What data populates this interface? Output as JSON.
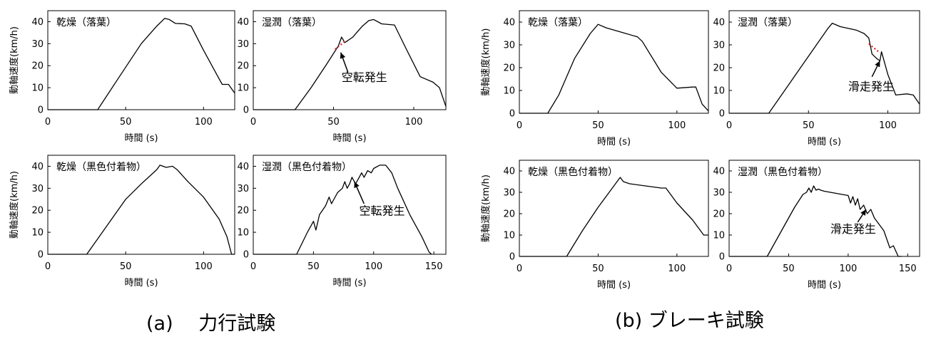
{
  "captions": {
    "a": "(a)　 力行試験",
    "b": "(b)  ブレーキ試験"
  },
  "chart_data": [
    {
      "type": "line",
      "group": "a",
      "title": "乾燥（落葉）",
      "xlabel": "時間 (s)",
      "ylabel": "動軸速度(km/h)",
      "xlim": [
        0,
        120
      ],
      "ylim": [
        0,
        45
      ],
      "xticks": [
        0,
        50,
        100
      ],
      "yticks": [
        0,
        10,
        20,
        30,
        40
      ],
      "series": [
        {
          "x": [
            0,
            32,
            45,
            60,
            70,
            75,
            78,
            82,
            88,
            92,
            100,
            110,
            112,
            116,
            120
          ],
          "y": [
            0,
            0,
            14,
            30,
            38,
            41.5,
            41,
            39.2,
            39,
            38,
            27,
            14,
            11.5,
            11.5,
            7.5
          ]
        }
      ],
      "annotations": []
    },
    {
      "type": "line",
      "group": "a",
      "title": "湿潤（落葉）",
      "xlabel": "時間 (s)",
      "ylabel": "",
      "xlim": [
        0,
        120
      ],
      "ylim": [
        0,
        45
      ],
      "xticks": [
        0,
        50,
        100
      ],
      "yticks": [
        0,
        10,
        20,
        30,
        40
      ],
      "series": [
        {
          "x": [
            0,
            26,
            36,
            46,
            53,
            55,
            57,
            62,
            68,
            72,
            75,
            80,
            88,
            95,
            104,
            112,
            116,
            120
          ],
          "y": [
            0,
            0,
            10,
            21,
            29,
            33,
            30.5,
            33,
            38,
            40.5,
            41,
            39,
            38.5,
            28,
            15,
            12.5,
            10,
            1.5
          ]
        }
      ],
      "annotations": [
        {
          "text": "空転発生",
          "x": 55,
          "y": 13
        }
      ]
    },
    {
      "type": "line",
      "group": "a",
      "title": "乾燥（黒色付着物）",
      "xlabel": "時間 (s)",
      "ylabel": "動軸速度(km/h)",
      "xlim": [
        0,
        120
      ],
      "ylim": [
        0,
        45
      ],
      "xticks": [
        0,
        50,
        100
      ],
      "yticks": [
        0,
        10,
        20,
        30,
        40
      ],
      "series": [
        {
          "x": [
            0,
            25,
            40,
            50,
            60,
            70,
            72,
            76,
            80,
            83,
            90,
            100,
            110,
            115,
            118,
            120
          ],
          "y": [
            0,
            0,
            15,
            25,
            32,
            38.5,
            40.5,
            39.5,
            40,
            38.5,
            33,
            26,
            16,
            8,
            0,
            0
          ]
        }
      ],
      "annotations": []
    },
    {
      "type": "line",
      "group": "a",
      "title": "湿潤（黒色付着物）",
      "xlabel": "時間 (s)",
      "ylabel": "",
      "xlim": [
        0,
        160
      ],
      "ylim": [
        0,
        45
      ],
      "xticks": [
        0,
        50,
        100,
        150
      ],
      "yticks": [
        0,
        10,
        20,
        30,
        40
      ],
      "series": [
        {
          "x": [
            0,
            36,
            45,
            50,
            52,
            55,
            60,
            63,
            65,
            70,
            74,
            76,
            78,
            80,
            82,
            85,
            88,
            90,
            92,
            95,
            98,
            100,
            105,
            110,
            115,
            120,
            130,
            140,
            146,
            148
          ],
          "y": [
            0,
            0,
            10,
            15,
            11,
            18,
            22,
            26,
            23,
            28,
            30,
            33,
            30,
            32,
            35,
            32,
            35,
            37,
            35,
            38,
            37,
            39,
            40.5,
            40.5,
            37,
            30,
            18,
            8,
            1,
            0
          ]
        }
      ],
      "annotations": [
        {
          "text": "空転発生",
          "x": 88,
          "y": 18
        }
      ]
    },
    {
      "type": "line",
      "group": "b",
      "title": "乾燥（落葉）",
      "xlabel": "時間 (s)",
      "ylabel": "動軸速度(km/h)",
      "xlim": [
        0,
        120
      ],
      "ylim": [
        0,
        45
      ],
      "xticks": [
        0,
        50,
        100
      ],
      "yticks": [
        0,
        10,
        20,
        30,
        40
      ],
      "series": [
        {
          "x": [
            0,
            18,
            25,
            35,
            45,
            50,
            55,
            65,
            75,
            78,
            90,
            100,
            110,
            112,
            116,
            120
          ],
          "y": [
            0,
            0,
            8,
            24,
            35,
            39,
            37.5,
            35.5,
            33.5,
            31.5,
            18,
            11,
            11.5,
            11.5,
            4,
            1
          ]
        }
      ],
      "annotations": []
    },
    {
      "type": "line",
      "group": "b",
      "title": "湿潤（落葉）",
      "xlabel": "時間 (s)",
      "ylabel": "",
      "xlim": [
        0,
        120
      ],
      "ylim": [
        0,
        45
      ],
      "xticks": [
        0,
        50,
        100
      ],
      "yticks": [
        0,
        10,
        20,
        30,
        40
      ],
      "series": [
        {
          "x": [
            0,
            25,
            35,
            45,
            55,
            62,
            65,
            70,
            80,
            85,
            88,
            90,
            93,
            95,
            96,
            100,
            105,
            112,
            116,
            120
          ],
          "y": [
            0,
            0,
            10,
            20,
            30,
            37,
            39.5,
            38,
            36.5,
            35,
            33,
            26,
            24,
            23,
            27,
            17,
            8,
            8.5,
            8,
            4
          ]
        }
      ],
      "annotations": [
        {
          "text": "滑走発生",
          "x": 75,
          "y": 10
        }
      ]
    },
    {
      "type": "line",
      "group": "b",
      "title": "乾燥（黒色付着物）",
      "xlabel": "時間 (s)",
      "ylabel": "動軸速度(km/h)",
      "xlim": [
        0,
        120
      ],
      "ylim": [
        0,
        45
      ],
      "xticks": [
        0,
        50,
        100
      ],
      "yticks": [
        0,
        10,
        20,
        30,
        40
      ],
      "series": [
        {
          "x": [
            0,
            30,
            40,
            50,
            58,
            62,
            64,
            66,
            70,
            80,
            90,
            93,
            100,
            110,
            117,
            120
          ],
          "y": [
            0,
            0,
            12,
            23,
            31,
            35,
            37,
            35,
            34,
            33,
            32,
            32,
            25,
            17,
            10,
            10
          ]
        }
      ],
      "annotations": []
    },
    {
      "type": "line",
      "group": "b",
      "title": "湿潤（黒色付着物）",
      "xlabel": "時間 (s)",
      "ylabel": "",
      "xlim": [
        0,
        160
      ],
      "ylim": [
        0,
        45
      ],
      "xticks": [
        0,
        50,
        100,
        150
      ],
      "yticks": [
        0,
        10,
        20,
        30,
        40
      ],
      "series": [
        {
          "x": [
            0,
            32,
            45,
            55,
            62,
            65,
            67,
            69,
            71,
            73,
            75,
            77,
            80,
            90,
            100,
            102,
            104,
            106,
            108,
            110,
            113,
            116,
            119,
            122,
            130,
            135,
            138,
            142,
            145
          ],
          "y": [
            0,
            0,
            13,
            23,
            29,
            30,
            32,
            30,
            33,
            31,
            31.5,
            31,
            30.5,
            29.5,
            28.5,
            25,
            28,
            24,
            27,
            22,
            24,
            20,
            22,
            18,
            12,
            4,
            5,
            0,
            0
          ]
        }
      ],
      "annotations": [
        {
          "text": "滑走発生",
          "x": 85,
          "y": 11
        }
      ]
    }
  ]
}
